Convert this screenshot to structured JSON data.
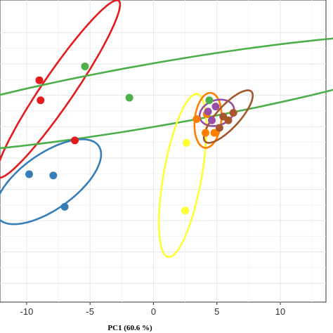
{
  "chart_data": {
    "type": "scatter",
    "title": "",
    "xlabel": "PC1 (60.6 %)",
    "ylabel": "",
    "xlim": [
      -12.1,
      13.6
    ],
    "ylim": [
      -11.5,
      12.6
    ],
    "x_ticks": [
      -10,
      -5,
      0,
      5,
      10
    ],
    "x_tick_labels": [
      "-10",
      "-5",
      "0",
      "5",
      "10"
    ],
    "y_gridlines": [
      10,
      7.5,
      5,
      2.5,
      0,
      -2.5,
      -5,
      -7.5,
      -10
    ],
    "grid": true,
    "legend": "none",
    "series": [
      {
        "color": "#e41a1c",
        "points": [
          [
            -9.0,
            6.2
          ],
          [
            -8.9,
            4.6
          ],
          [
            -6.2,
            1.4
          ]
        ],
        "ellipse": {
          "cx": -7.5,
          "cy": 5.5,
          "rx": 8.5,
          "ry": 1.25,
          "angle_deg": 56
        }
      },
      {
        "color": "#4daf4a",
        "points": [
          [
            -5.4,
            7.3
          ],
          [
            -1.9,
            4.8
          ],
          [
            4.4,
            4.6
          ]
        ],
        "ellipse": {
          "cx": 0.5,
          "cy": 5.1,
          "rx": 23.5,
          "ry": 2.5,
          "angle_deg": 10
        }
      },
      {
        "color": "#377eb8",
        "points": [
          [
            -9.8,
            -1.3
          ],
          [
            -7.9,
            -1.4
          ],
          [
            -7.0,
            -3.9
          ]
        ],
        "ellipse": {
          "cx": -8.3,
          "cy": -1.9,
          "rx": 4.9,
          "ry": 2.2,
          "angle_deg": 36
        }
      },
      {
        "color": "#ffff33",
        "points": [
          [
            2.6,
            1.2
          ],
          [
            2.5,
            -4.2
          ]
        ],
        "ellipse": {
          "cx": 2.3,
          "cy": -1.4,
          "rx": 6.6,
          "ry": 1.5,
          "angle_deg": 80
        }
      },
      {
        "color": "#ff7f00",
        "points": [
          [
            3.4,
            3.1
          ],
          [
            4.2,
            3.5
          ],
          [
            4.1,
            2.0
          ],
          [
            4.8,
            2.0
          ]
        ],
        "ellipse": {
          "cx": 4.3,
          "cy": 3.0,
          "rx": 2.2,
          "ry": 1.05,
          "angle_deg": 84
        }
      },
      {
        "color": "#984ea3",
        "points": [
          [
            4.9,
            4.1
          ],
          [
            4.3,
            3.7
          ],
          [
            4.6,
            3.0
          ]
        ],
        "ellipse": {
          "cx": 5.0,
          "cy": 3.6,
          "rx": 1.4,
          "ry": 1.0,
          "angle_deg": 20
        }
      },
      {
        "color": "#a65628",
        "points": [
          [
            5.5,
            3.3
          ],
          [
            6.3,
            3.6
          ],
          [
            5.9,
            3.0
          ],
          [
            5.2,
            2.4
          ]
        ],
        "ellipse": {
          "cx": 5.9,
          "cy": 3.3,
          "rx": 2.7,
          "ry": 0.9,
          "angle_deg": 48
        }
      }
    ]
  }
}
